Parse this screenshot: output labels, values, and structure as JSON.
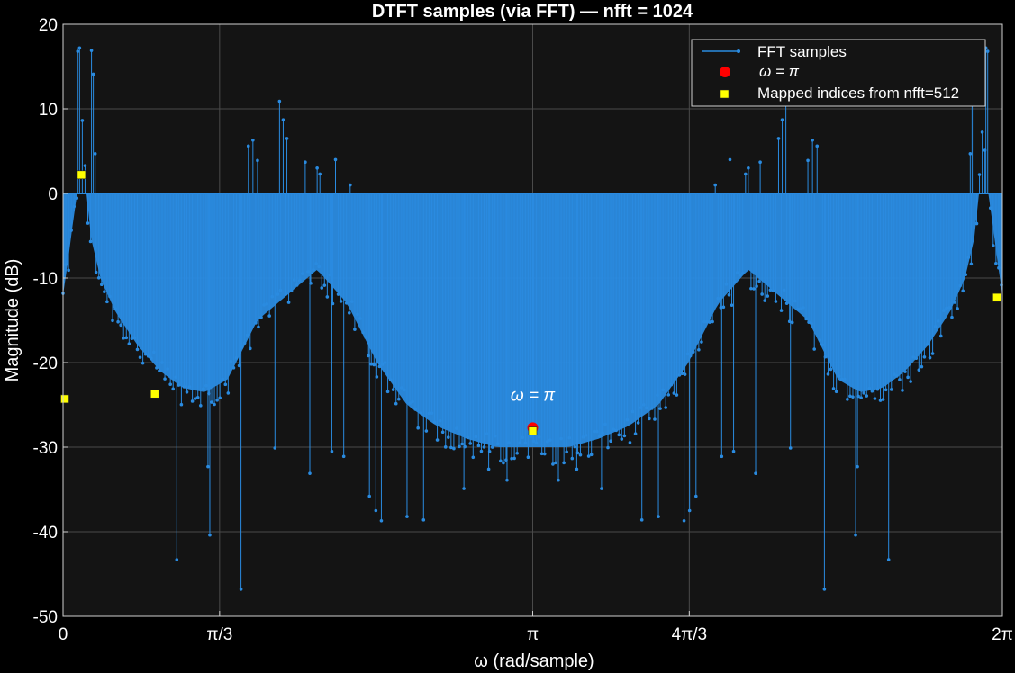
{
  "chart_data": {
    "type": "line",
    "title": "DTFT samples (via FFT) — nfft = 1024",
    "xlabel": "ω  (rad/sample)",
    "ylabel": "Magnitude (dB)",
    "xlim": [
      0,
      6.2832
    ],
    "ylim": [
      -50,
      20
    ],
    "grid": true,
    "legend_position": "top-right",
    "x_ticks": [
      {
        "value": 0,
        "label": "0"
      },
      {
        "value": 1.0472,
        "label": "π/3"
      },
      {
        "value": 3.1416,
        "label": "π"
      },
      {
        "value": 4.1888,
        "label": "4π/3"
      },
      {
        "value": 6.2832,
        "label": "2π"
      }
    ],
    "y_ticks": [
      {
        "value": 20,
        "label": "20"
      },
      {
        "value": 10,
        "label": "10"
      },
      {
        "value": 0,
        "label": "0"
      },
      {
        "value": -10,
        "label": "-10"
      },
      {
        "value": -20,
        "label": "-20"
      },
      {
        "value": -30,
        "label": "-30"
      },
      {
        "value": -40,
        "label": "-40"
      },
      {
        "value": -50,
        "label": "-50"
      }
    ],
    "baseline": 0,
    "fft_samples": {
      "name": "FFT samples",
      "color": "#2a8be0",
      "nfft": 1024,
      "envelope": {
        "x": [
          0,
          0.05,
          0.1,
          0.13,
          0.17,
          0.25,
          0.35,
          0.5,
          0.65,
          0.8,
          0.95,
          1.1,
          1.3,
          1.5,
          1.7,
          1.9,
          2.1,
          2.3,
          2.5,
          2.7,
          2.9,
          3.05,
          3.1416
        ],
        "y": [
          -12,
          -6,
          2,
          8,
          -4,
          -10,
          -14,
          -18,
          -21,
          -23,
          -23.5,
          -22,
          -15,
          -12,
          -9,
          -13,
          -20,
          -25,
          -27.5,
          -29,
          -30,
          -30,
          -30
        ]
      },
      "peaks": [
        {
          "x": 0.1,
          "y": 16.8
        },
        {
          "x": 0.108,
          "y": 17.2
        },
        {
          "x": 0.19,
          "y": 16.9
        },
        {
          "x": 0.2,
          "y": 14.1
        },
        {
          "x": 0.215,
          "y": 4.7
        },
        {
          "x": 1.24,
          "y": 5.6
        },
        {
          "x": 1.27,
          "y": 6.3
        },
        {
          "x": 1.3,
          "y": 3.9
        },
        {
          "x": 1.45,
          "y": 10.9
        },
        {
          "x": 1.47,
          "y": 8.7
        },
        {
          "x": 1.5,
          "y": 6.5
        },
        {
          "x": 1.62,
          "y": 3.7
        },
        {
          "x": 1.7,
          "y": 3.0
        },
        {
          "x": 1.72,
          "y": 2.3
        },
        {
          "x": 1.8,
          "y": 4.3
        },
        {
          "x": 1.82,
          "y": 4.0
        },
        {
          "x": 1.92,
          "y": 1.0
        }
      ],
      "dips": [
        {
          "x": 0.76,
          "y": -43.3
        },
        {
          "x": 0.98,
          "y": -40.4
        },
        {
          "x": 1.19,
          "y": -46.8
        },
        {
          "x": 0.97,
          "y": -32.3
        },
        {
          "x": 1.42,
          "y": -30.1
        },
        {
          "x": 1.65,
          "y": -33.1
        },
        {
          "x": 1.8,
          "y": -30.5
        },
        {
          "x": 1.88,
          "y": -31.1
        },
        {
          "x": 2.05,
          "y": -35.8
        },
        {
          "x": 2.09,
          "y": -37.5
        },
        {
          "x": 2.13,
          "y": -38.7
        },
        {
          "x": 2.3,
          "y": -38.2
        },
        {
          "x": 2.41,
          "y": -38.6
        },
        {
          "x": 2.68,
          "y": -34.9
        },
        {
          "x": 2.85,
          "y": -32.6
        },
        {
          "x": 2.97,
          "y": -33.9
        },
        {
          "x": 3.14,
          "y": -28.2
        }
      ]
    },
    "omega_pi_marker": {
      "name": "ω  =  π",
      "x": 3.1416,
      "y": -27.7,
      "color": "#ff0000"
    },
    "mapped_indices": {
      "name": "Mapped indices from nfft=512",
      "color": "#ffff00",
      "points": [
        {
          "x": 0.012,
          "y": -24.3
        },
        {
          "x": 0.123,
          "y": 2.2
        },
        {
          "x": 0.613,
          "y": -23.7
        },
        {
          "x": 3.1416,
          "y": -28.1
        },
        {
          "x": 6.2463,
          "y": -12.3
        }
      ]
    },
    "annotation": {
      "text": "ω  =  π",
      "x": 3.1416,
      "y": -24.5
    }
  }
}
